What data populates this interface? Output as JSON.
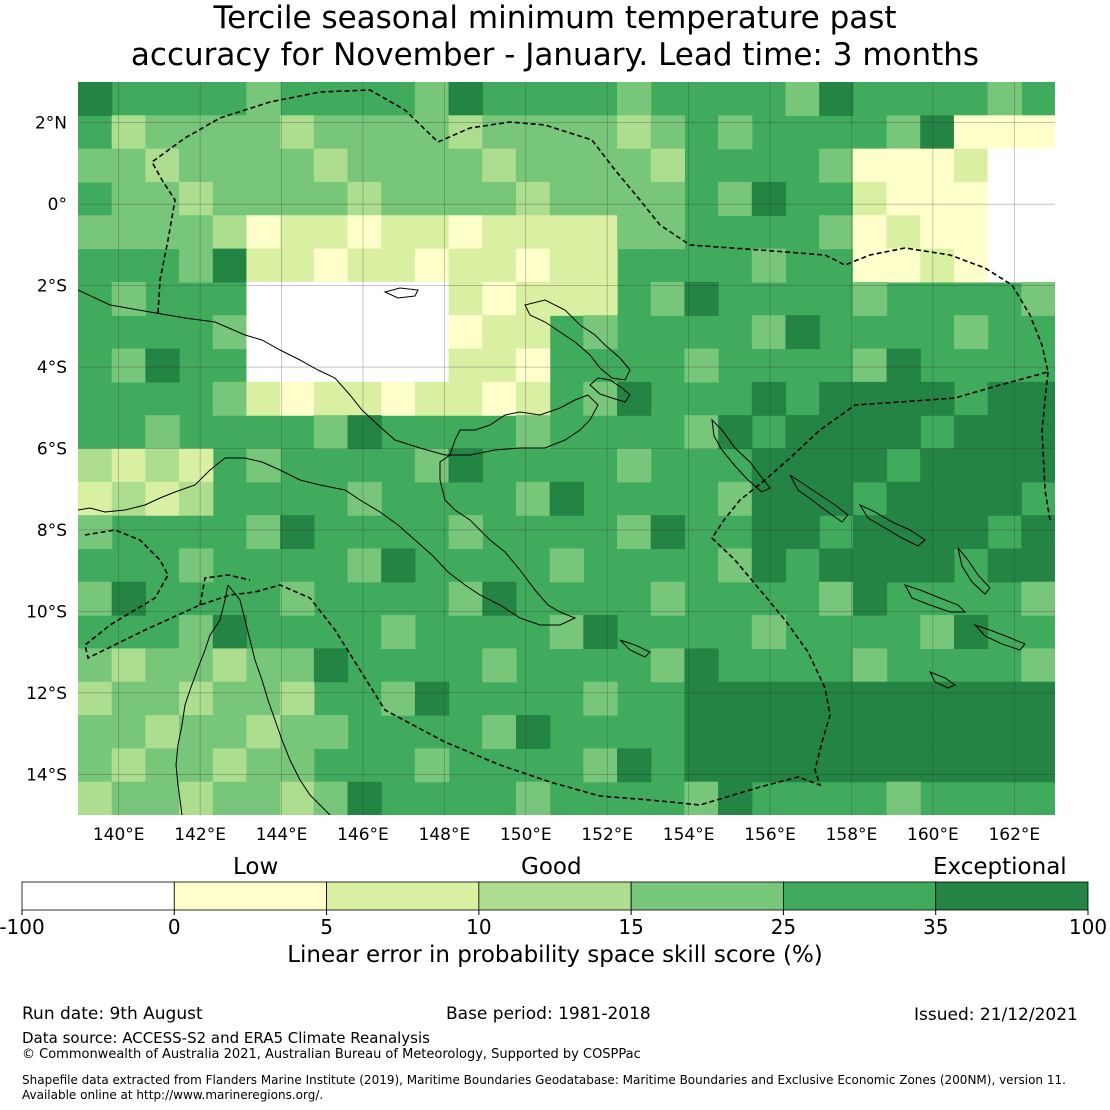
{
  "title_line1": "Tercile seasonal minimum temperature past",
  "title_line2": "accuracy for November - January. Lead time: 3 months",
  "map": {
    "lon_range": [
      139,
      163
    ],
    "lat_range": [
      -15,
      3
    ],
    "x_ticks": [
      {
        "value": 140,
        "label": "140°E"
      },
      {
        "value": 142,
        "label": "142°E"
      },
      {
        "value": 144,
        "label": "144°E"
      },
      {
        "value": 146,
        "label": "146°E"
      },
      {
        "value": 148,
        "label": "148°E"
      },
      {
        "value": 150,
        "label": "150°E"
      },
      {
        "value": 152,
        "label": "152°E"
      },
      {
        "value": 154,
        "label": "154°E"
      },
      {
        "value": 156,
        "label": "156°E"
      },
      {
        "value": 158,
        "label": "158°E"
      },
      {
        "value": 160,
        "label": "160°E"
      },
      {
        "value": 162,
        "label": "162°E"
      }
    ],
    "y_ticks": [
      {
        "value": 2,
        "label": "2°N"
      },
      {
        "value": 0,
        "label": "0°"
      },
      {
        "value": -2,
        "label": "2°S"
      },
      {
        "value": -4,
        "label": "4°S"
      },
      {
        "value": -6,
        "label": "6°S"
      },
      {
        "value": -8,
        "label": "8°S"
      },
      {
        "value": -10,
        "label": "10°S"
      },
      {
        "value": -12,
        "label": "12°S"
      },
      {
        "value": -14,
        "label": "14°S"
      }
    ],
    "grid_lines": true
  },
  "colorbar": {
    "bounds": [
      -100,
      0,
      5,
      10,
      15,
      25,
      35,
      100
    ],
    "tick_labels": [
      "-100",
      "0",
      "5",
      "10",
      "15",
      "25",
      "35",
      "100"
    ],
    "colors": [
      "#ffffff",
      "#ffffcc",
      "#d9f0a3",
      "#addd8e",
      "#78c679",
      "#41ab5d",
      "#238443"
    ],
    "category_labels": [
      "Low",
      "Good",
      "Exceptional"
    ],
    "label": "Linear error in probability space skill score (%)"
  },
  "footer": {
    "run_date": "Run date: 9th August",
    "base_period": "Base period: 1981-2018",
    "issued": "Issued: 21/12/2021",
    "data_source": "Data source: ACCESS-S2 and ERA5 Climate Reanalysis",
    "copyright": "© Commonwealth of Australia 2021, Australian Bureau of Meteorology, Supported by COSPPac",
    "shapefile_1": "Shapefile data extracted from Flanders Marine Institute (2019), Maritime Boundaries Geodatabase: Maritime Boundaries and Exclusive Economic Zones (200NM), version 11.",
    "shapefile_2": "Available online at http://www.marineregions.org/."
  }
}
